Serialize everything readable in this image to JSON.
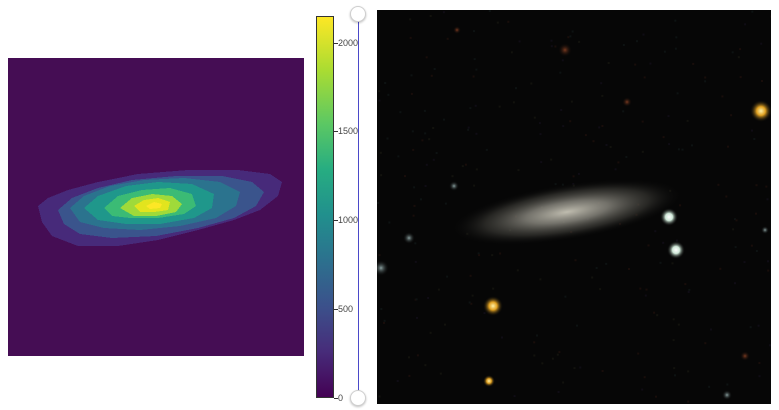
{
  "heatmap": {
    "colormap": "viridis"
  },
  "colorbar": {
    "min": 0,
    "max": 2150,
    "ticks": [
      {
        "value": 0,
        "label": "0"
      },
      {
        "value": 500,
        "label": "500"
      },
      {
        "value": 1000,
        "label": "1000"
      },
      {
        "value": 1500,
        "label": "1500"
      },
      {
        "value": 2000,
        "label": "2000"
      }
    ]
  },
  "slider": {
    "upper_value": 2150,
    "lower_value": 0,
    "track_color": "#4b49c9"
  },
  "photo": {
    "background_color": "#050505",
    "galaxy_color": "#b8b4a6"
  }
}
